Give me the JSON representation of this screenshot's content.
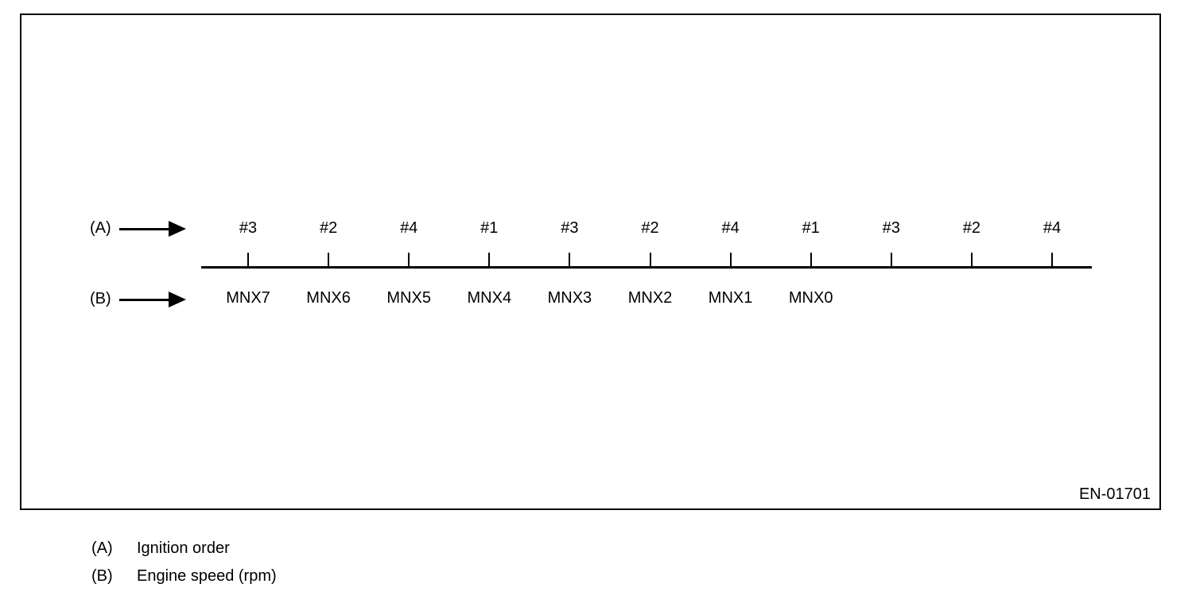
{
  "diagram": {
    "figure_code": "EN-01701",
    "row_a": {
      "label": "(A)"
    },
    "row_b": {
      "label": "(B)"
    },
    "ignition_order": [
      "#3",
      "#2",
      "#4",
      "#1",
      "#3",
      "#2",
      "#4",
      "#1",
      "#3",
      "#2",
      "#4"
    ],
    "engine_speed_labels": [
      "MNX7",
      "MNX6",
      "MNX5",
      "MNX4",
      "MNX3",
      "MNX2",
      "MNX1",
      "MNX0"
    ]
  },
  "legend": {
    "items": [
      {
        "key": "(A)",
        "label": "Ignition order"
      },
      {
        "key": "(B)",
        "label": "Engine speed (rpm)"
      }
    ]
  },
  "colors": {
    "ink": "#000000",
    "background": "#ffffff"
  }
}
